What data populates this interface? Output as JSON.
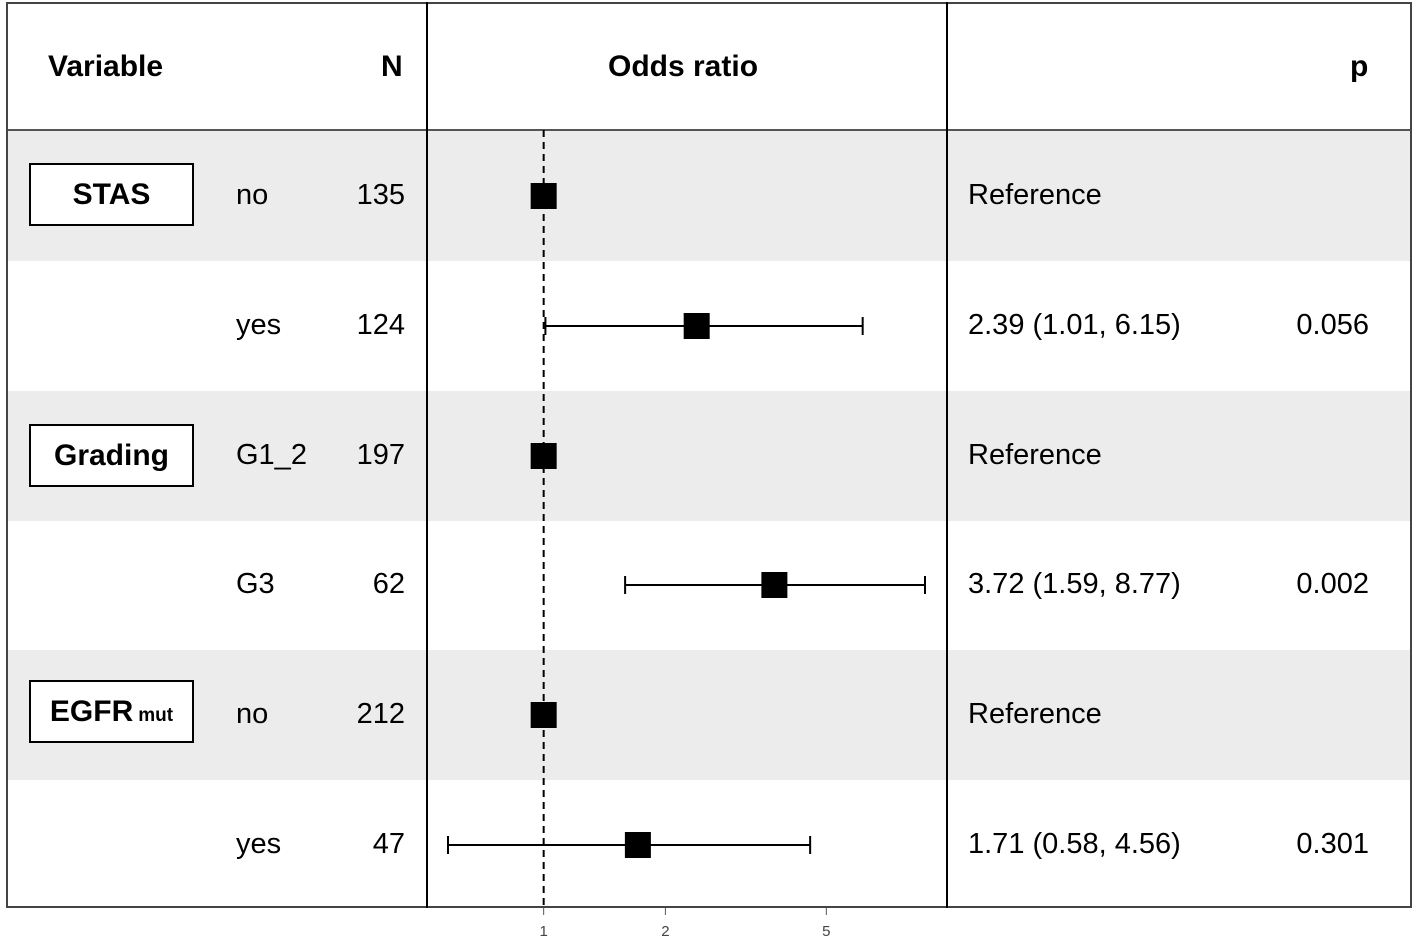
{
  "headers": {
    "variable": "Variable",
    "n": "N",
    "or": "Odds ratio",
    "p": "p"
  },
  "groups": [
    {
      "label": "STAS",
      "sub": ""
    },
    {
      "label": "Grading",
      "sub": ""
    },
    {
      "label": "EGFR",
      "sub": "mut"
    }
  ],
  "rows": [
    {
      "level": "no",
      "n": "135",
      "or_text": "Reference",
      "p": ""
    },
    {
      "level": "yes",
      "n": "124",
      "or_text": "2.39 (1.01, 6.15)",
      "p": "0.056"
    },
    {
      "level": "G1_2",
      "n": "197",
      "or_text": "Reference",
      "p": ""
    },
    {
      "level": "G3",
      "n": "62",
      "or_text": "3.72 (1.59, 8.77)",
      "p": "0.002"
    },
    {
      "level": "no",
      "n": "212",
      "or_text": "Reference",
      "p": ""
    },
    {
      "level": "yes",
      "n": "47",
      "or_text": "1.71 (0.58, 4.56)",
      "p": "0.301"
    }
  ],
  "chart_data": {
    "type": "forest",
    "xscale": "log",
    "xlim": [
      0.58,
      8.77
    ],
    "xticks": [
      1,
      2,
      5
    ],
    "reference_line": 1,
    "points": [
      {
        "est": 1
      },
      {
        "est": 2.39,
        "low": 1.01,
        "high": 6.15
      },
      {
        "est": 1
      },
      {
        "est": 3.72,
        "low": 1.59,
        "high": 8.77
      },
      {
        "est": 1
      },
      {
        "est": 1.71,
        "low": 0.58,
        "high": 4.56
      }
    ],
    "colors": {
      "stripe": "#ececec",
      "mark": "#000000",
      "line": "#000000"
    }
  }
}
